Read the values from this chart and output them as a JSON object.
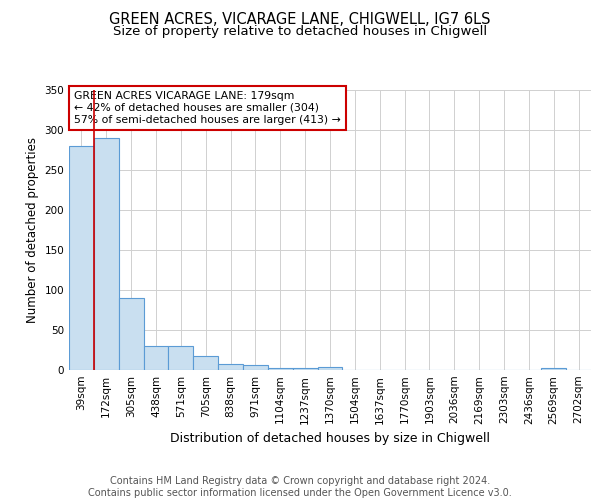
{
  "title": "GREEN ACRES, VICARAGE LANE, CHIGWELL, IG7 6LS",
  "subtitle": "Size of property relative to detached houses in Chigwell",
  "xlabel": "Distribution of detached houses by size in Chigwell",
  "ylabel": "Number of detached properties",
  "bins": [
    "39sqm",
    "172sqm",
    "305sqm",
    "438sqm",
    "571sqm",
    "705sqm",
    "838sqm",
    "971sqm",
    "1104sqm",
    "1237sqm",
    "1370sqm",
    "1504sqm",
    "1637sqm",
    "1770sqm",
    "1903sqm",
    "2036sqm",
    "2169sqm",
    "2303sqm",
    "2436sqm",
    "2569sqm",
    "2702sqm"
  ],
  "values": [
    280,
    290,
    90,
    30,
    30,
    18,
    8,
    6,
    3,
    3,
    4,
    0,
    0,
    0,
    0,
    0,
    0,
    0,
    0,
    3,
    0
  ],
  "bar_color": "#c9dff0",
  "bar_edge_color": "#5b9bd5",
  "bar_edge_width": 0.8,
  "vline_x": 1.5,
  "vline_color": "#cc0000",
  "annotation_text": "GREEN ACRES VICARAGE LANE: 179sqm\n← 42% of detached houses are smaller (304)\n57% of semi-detached houses are larger (413) →",
  "annotation_box_color": "white",
  "annotation_box_edge_color": "#cc0000",
  "ylim": [
    0,
    350
  ],
  "yticks": [
    0,
    50,
    100,
    150,
    200,
    250,
    300,
    350
  ],
  "footer": "Contains HM Land Registry data © Crown copyright and database right 2024.\nContains public sector information licensed under the Open Government Licence v3.0.",
  "background_color": "#ffffff",
  "grid_color": "#d0d0d0",
  "title_fontsize": 10.5,
  "subtitle_fontsize": 9.5,
  "xlabel_fontsize": 9,
  "ylabel_fontsize": 8.5,
  "tick_fontsize": 7.5,
  "footer_fontsize": 7,
  "annotation_fontsize": 7.8
}
